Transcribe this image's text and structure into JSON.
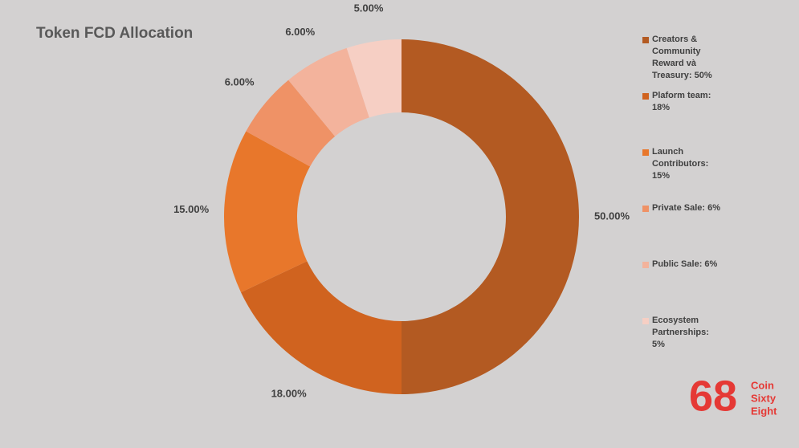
{
  "chart_data": {
    "type": "donut",
    "title": "Token FCD Allocation",
    "categories": [
      "Creators & Community Reward và Treasury: 50%",
      "Plaform team: 18%",
      "Launch Contributors: 15%",
      "Private Sale: 6%",
      "Public Sale: 6%",
      "Ecosystem Partnerships: 5%"
    ],
    "values": [
      50,
      18,
      15,
      6,
      6,
      5
    ],
    "value_labels": [
      "50.00%",
      "18.00%",
      "15.00%",
      "6.00%",
      "6.00%",
      "5.00%"
    ],
    "colors": [
      "#b35a22",
      "#d0631f",
      "#e8772b",
      "#ef9266",
      "#f3b39c",
      "#f6cfc4"
    ],
    "legend": "right"
  },
  "watermark": {
    "mark": "68",
    "text": [
      "Coin",
      "Sixty",
      "Eight"
    ]
  }
}
